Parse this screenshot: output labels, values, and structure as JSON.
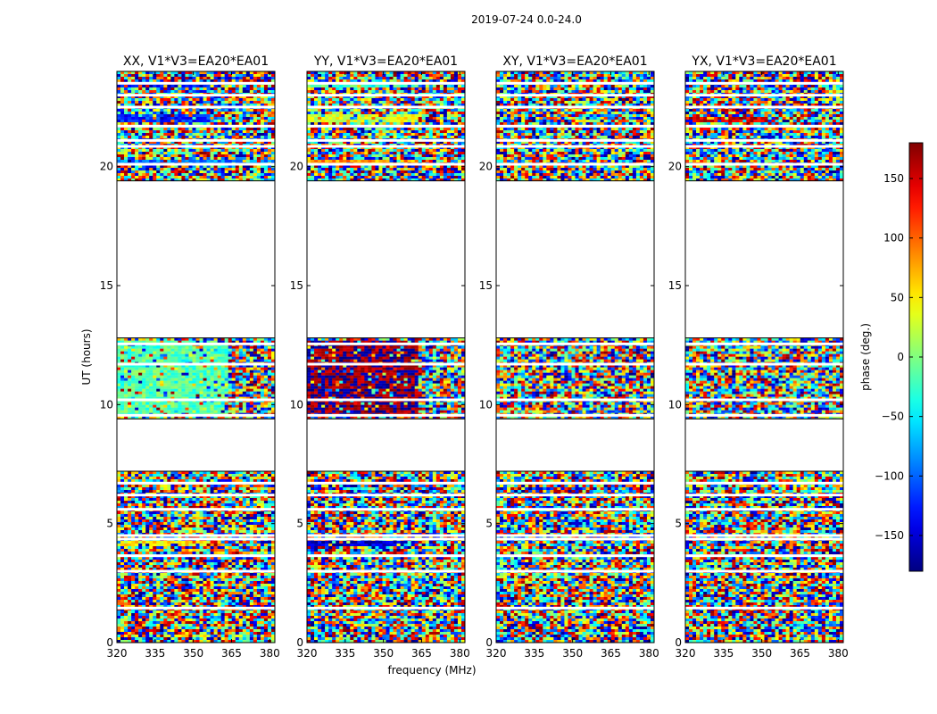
{
  "chart_data": {
    "type": "heatmap",
    "suptitle": "2019-07-24 0.0-24.0",
    "xlabel": "frequency (MHz)",
    "ylabel": "UT (hours)",
    "colorbar": {
      "label": "phase (deg.)",
      "range": [
        -180,
        180
      ],
      "ticks": [
        -150,
        -100,
        -50,
        0,
        50,
        100,
        150
      ],
      "tick_labels": [
        "−150",
        "−100",
        "−50",
        "0",
        "50",
        "100",
        "150"
      ],
      "colormap": "jet"
    },
    "xlim": [
      320,
      382
    ],
    "xticks": [
      320,
      335,
      350,
      365,
      380
    ],
    "ylim": [
      0,
      24
    ],
    "yticks": [
      0,
      5,
      10,
      15,
      20
    ],
    "data_blocks_ut": [
      [
        0,
        7.2
      ],
      [
        9.4,
        12.8
      ],
      [
        19.4,
        24
      ]
    ],
    "flagged_rows_ut": [
      1.45,
      3.0,
      3.65,
      4.35,
      4.5,
      5.6,
      6.2,
      6.7,
      9.55,
      10.2,
      11.7,
      12.55,
      20.1,
      20.85,
      21.1,
      21.7,
      22.5,
      23.0,
      23.5
    ],
    "panels": [
      {
        "title": "XX, V1*V3=EA20*EA01",
        "coherent_phase_deg": [
          {
            "ut": [
              9.5,
              12.7
            ],
            "freq": [
              320,
              364
            ],
            "phase": -15
          },
          {
            "ut": [
              21.9,
              22.2
            ],
            "freq": [
              320,
              356
            ],
            "phase": -120
          },
          {
            "ut": [
              23.3,
              23.6
            ],
            "freq": [
              320,
              356
            ],
            "phase": -140
          },
          {
            "ut": [
              4.05,
              4.25
            ],
            "freq": [
              320,
              356
            ],
            "phase": 50
          },
          {
            "ut": [
              20.1,
              20.3
            ],
            "freq": [
              320,
              382
            ],
            "phase": -90
          }
        ]
      },
      {
        "title": "YY, V1*V3=EA20*EA01",
        "coherent_phase_deg": [
          {
            "ut": [
              9.5,
              12.7
            ],
            "freq": [
              320,
              364
            ],
            "phase": 175
          },
          {
            "ut": [
              21.9,
              22.2
            ],
            "freq": [
              320,
              364
            ],
            "phase": 30
          },
          {
            "ut": [
              23.3,
              23.6
            ],
            "freq": [
              320,
              364
            ],
            "phase": -20
          },
          {
            "ut": [
              4.05,
              4.25
            ],
            "freq": [
              320,
              364
            ],
            "phase": -150
          },
          {
            "ut": [
              20.1,
              20.3
            ],
            "freq": [
              320,
              364
            ],
            "phase": 80
          }
        ]
      },
      {
        "title": "XY, V1*V3=EA20*EA01",
        "coherent_phase_deg": []
      },
      {
        "title": "YX, V1*V3=EA20*EA01",
        "coherent_phase_deg": [
          {
            "ut": [
              21.9,
              22.1
            ],
            "freq": [
              320,
              352
            ],
            "phase": 150
          }
        ]
      }
    ]
  }
}
